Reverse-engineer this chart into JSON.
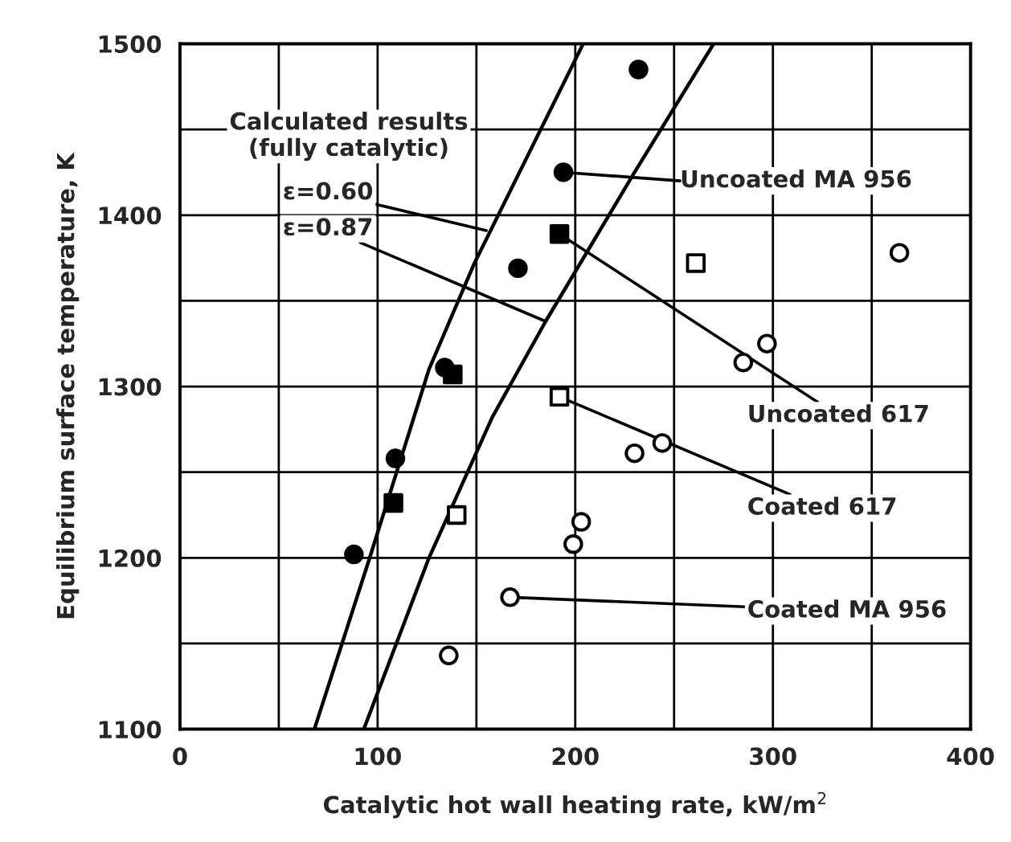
{
  "chart_data": {
    "type": "scatter",
    "xlabel": "Catalytic hot wall heating rate, kW/m$^{2}$",
    "ylabel": "Equilibrium surface temperature, K",
    "xlim": [
      0,
      400
    ],
    "ylim": [
      1100,
      1500
    ],
    "xticks": [
      0,
      {
        "value": 50,
        "label": null
      },
      100,
      {
        "value": 150,
        "label": null
      },
      200,
      {
        "value": 250,
        "label": null
      },
      300,
      {
        "value": 350,
        "label": null
      },
      400
    ],
    "yticks": [
      1100,
      {
        "value": 1150,
        "label": null
      },
      1200,
      {
        "value": 1250,
        "label": null
      },
      1300,
      {
        "value": 1350,
        "label": null
      },
      1400,
      {
        "value": 1450,
        "label": null
      },
      1500
    ],
    "grid": true,
    "legend": false,
    "series": [
      {
        "type": "line",
        "color": "#000000",
        "marker": "none",
        "line_style": "solid",
        "x": [
          68,
          96,
          126,
          149,
          204
        ],
        "values": [
          1100,
          1200,
          1310,
          1372,
          1500
        ]
      },
      {
        "type": "line",
        "color": "#000000",
        "marker": "none",
        "line_style": "solid",
        "x": [
          93,
          126,
          158,
          185,
          230,
          270
        ],
        "values": [
          1100,
          1200,
          1282,
          1338,
          1425,
          1500
        ]
      },
      {
        "color": "#000000",
        "marker": "circle",
        "x": [
          232,
          194,
          171,
          134,
          109,
          88
        ],
        "values": [
          1485,
          1425,
          1369,
          1311,
          1258,
          1202
        ]
      },
      {
        "color": "#000000",
        "marker": "square",
        "x": [
          192,
          138,
          108
        ],
        "values": [
          1389,
          1307,
          1232
        ]
      },
      {
        "color": "#ffffff",
        "marker": "square",
        "x": [
          261,
          192,
          140
        ],
        "values": [
          1372,
          1294,
          1225
        ]
      },
      {
        "color": "#ffffff",
        "marker": "circle",
        "x": [
          364,
          297,
          285,
          244,
          230,
          203,
          199,
          167,
          136
        ],
        "values": [
          1378,
          1325,
          1314,
          1267,
          1261,
          1221,
          1208,
          1177,
          1143
        ]
      }
    ],
    "annotations": [
      "Calculated results\n(fully catalytic)",
      {
        "text": "ε=0.60",
        "x": 155,
        "y": 1391
      },
      {
        "text": "ε=0.87",
        "x": 185,
        "y": 1338
      },
      "Uncoated MA 956",
      {
        "text": "Uncoated 617",
        "x": 192,
        "y": 1389
      },
      {
        "text": "Coated 617",
        "x": 192,
        "y": 1294
      },
      {
        "text": "Coated MA 956",
        "x": 167,
        "y": 1177
      }
    ]
  }
}
